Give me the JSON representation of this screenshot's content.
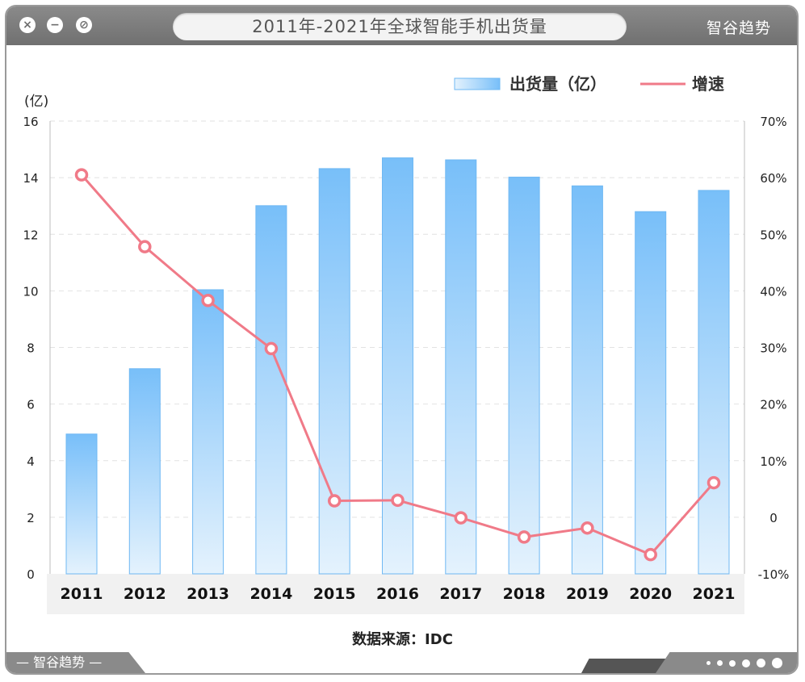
{
  "window": {
    "title": "2011年-2021年全球智能手机出货量",
    "brand": "智谷趋势",
    "close_icon": "×",
    "minimize_icon": "−",
    "block_icon": "⊘"
  },
  "source": "数据来源：IDC",
  "colors": {
    "bar_top": "#78bff9",
    "bar_bottom": "#e4f2fd",
    "bar_edge": "#6fb8f3",
    "line": "#f07a88",
    "axis_band": "#f1f1f1"
  },
  "chart_data": {
    "type": "bar",
    "categories": [
      "2011",
      "2012",
      "2013",
      "2014",
      "2015",
      "2016",
      "2017",
      "2018",
      "2019",
      "2020",
      "2021"
    ],
    "series": [
      {
        "name": "出货量（亿）",
        "type": "bar",
        "axis": "left",
        "values": [
          4.94,
          7.25,
          10.04,
          13.01,
          14.32,
          14.7,
          14.63,
          14.02,
          13.71,
          12.8,
          13.55
        ]
      },
      {
        "name": "增速",
        "type": "line",
        "axis": "right",
        "values": [
          60.5,
          47.8,
          38.3,
          29.8,
          2.9,
          3.0,
          -0.1,
          -3.5,
          -1.9,
          -6.6,
          6.1
        ]
      }
    ],
    "y_left": {
      "unit": "(亿)",
      "min": 0,
      "max": 16,
      "ticks": [
        0,
        2,
        4,
        6,
        8,
        10,
        12,
        14,
        16
      ]
    },
    "y_right": {
      "min": -10,
      "max": 70,
      "ticks": [
        "-10%",
        "0",
        "10%",
        "20%",
        "30%",
        "40%",
        "50%",
        "60%",
        "70%"
      ]
    },
    "legend": "top-right",
    "grid": true
  }
}
